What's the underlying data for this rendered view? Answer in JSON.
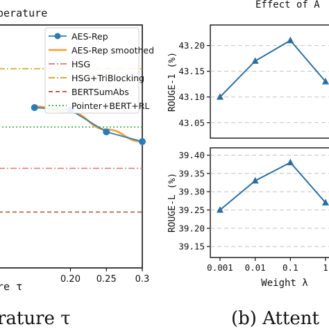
{
  "captions": {
    "left": "rature τ",
    "right": "(b) Attent"
  },
  "chart_data": [
    {
      "type": "line",
      "title": "perature",
      "xlabel": "re τ",
      "ylabel": "",
      "x": [
        0.15,
        0.2,
        0.25,
        0.3
      ],
      "xlim": [
        0.1,
        0.3
      ],
      "xticks": [
        "0.20",
        "0.25",
        "0.3"
      ],
      "ylim": [
        0,
        1
      ],
      "series": [
        {
          "name": "AES-Rep",
          "color": "#2c7bb6",
          "style": "solid-marker",
          "x": [
            0.15,
            0.2,
            0.25,
            0.3
          ],
          "y": [
            0.66,
            0.65,
            0.56,
            0.52
          ]
        },
        {
          "name": "AES-Rep smoothed",
          "color": "#ff9a2e",
          "style": "solid",
          "x": [
            0.15,
            0.2,
            0.25,
            0.3
          ],
          "y": [
            0.665,
            0.64,
            0.57,
            0.52
          ]
        }
      ],
      "reference_lines": [
        {
          "name": "HSG",
          "color": "#e57373",
          "style": "dashdot",
          "y": 0.41
        },
        {
          "name": "HSG+TriBlocking",
          "color": "#c8a415",
          "style": "dashdot",
          "y": 0.82
        },
        {
          "name": "BERTSumAbs",
          "color": "#a0522d",
          "style": "dashed",
          "y": 0.23
        },
        {
          "name": "Pointer+BERT+RL",
          "color": "#2e9e2e",
          "style": "dotted",
          "y": 0.58
        }
      ],
      "legend": "top-right"
    },
    {
      "type": "line",
      "title": "Effect of A",
      "xlabel": "",
      "ylabel": "ROUGE-1 (%)",
      "categories": [
        "0.001",
        "0.01",
        "0.1",
        "1"
      ],
      "series": [
        {
          "name": "",
          "color": "#2c6e9e",
          "values": [
            43.1,
            43.17,
            43.21,
            43.13
          ]
        }
      ],
      "ylim": [
        43.02,
        43.24
      ],
      "yticks": [
        "43.05",
        "43.10",
        "43.15",
        "43.20"
      ],
      "grid": "horizontal-dashed"
    },
    {
      "type": "line",
      "xlabel": "Weight λ",
      "ylabel": "ROUGE-L (%)",
      "categories": [
        "0.001",
        "0.01",
        "0.1",
        "1"
      ],
      "series": [
        {
          "name": "",
          "color": "#2c6e9e",
          "values": [
            39.25,
            39.33,
            39.38,
            39.27
          ]
        }
      ],
      "ylim": [
        39.12,
        39.42
      ],
      "yticks": [
        "39.15",
        "39.20",
        "39.25",
        "39.30",
        "39.35",
        "39.40"
      ],
      "grid": "horizontal-dashed"
    }
  ]
}
